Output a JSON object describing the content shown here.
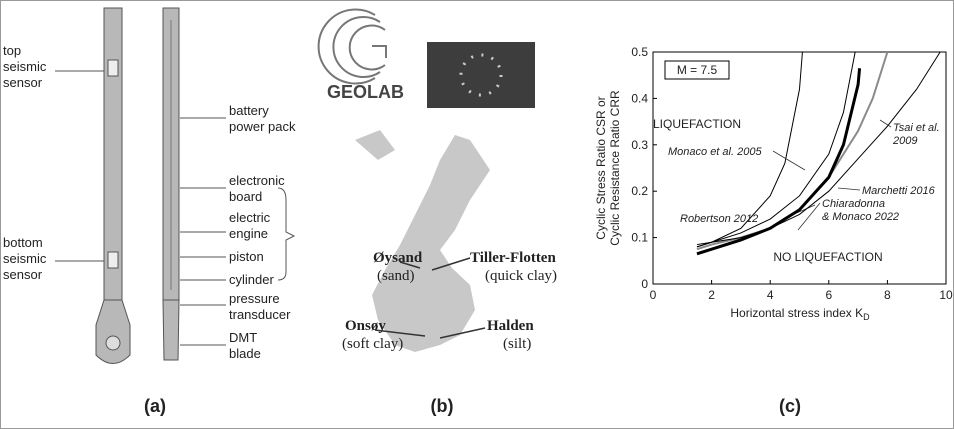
{
  "panel_a": {
    "caption": "(a)",
    "left_labels": [
      [
        "top",
        "seismic",
        "sensor"
      ],
      [
        "bottom",
        "seismic",
        "sensor"
      ]
    ],
    "right_labels": [
      [
        "battery",
        "power pack"
      ],
      [
        "electronic",
        "board"
      ],
      [
        "electric",
        "engine"
      ],
      [
        "piston"
      ],
      [
        "cylinder"
      ],
      [
        "pressure",
        "transducer"
      ],
      [
        "DMT",
        "blade"
      ]
    ]
  },
  "panel_b": {
    "caption": "(b)",
    "logo": "GEOLAB",
    "sites": [
      [
        "Øysand",
        "(sand)"
      ],
      [
        "Tiller-Flotten",
        "(quick clay)"
      ],
      [
        "Onsøy",
        "(soft clay)"
      ],
      [
        "Halden",
        "(silt)"
      ]
    ]
  },
  "panel_c": {
    "caption": "(c)"
  },
  "chart_data": {
    "type": "line",
    "xlabel": "Horizontal stress index K",
    "xlabel_subscript": "D",
    "ylabel": [
      "Cyclic Stress Ratio CSR or",
      "Cyclic Resistance Ratio CRR"
    ],
    "xlim": [
      0,
      10
    ],
    "ylim": [
      0,
      0.5
    ],
    "xticks": [
      0,
      2,
      4,
      6,
      8,
      10
    ],
    "yticks": [
      0,
      0.1,
      0.2,
      0.3,
      0.4,
      0.5
    ],
    "annotations": [
      "M = 7.5",
      "LIQUEFACTION",
      "NO LIQUEFACTION"
    ],
    "series": [
      {
        "label_lines": [
          "Monaco et al. 2005"
        ],
        "color": "#000000",
        "width": 1,
        "x": [
          1.5,
          2,
          3,
          4,
          4.5,
          5,
          5.1
        ],
        "values": [
          0.08,
          0.09,
          0.12,
          0.19,
          0.26,
          0.42,
          0.5
        ]
      },
      {
        "label_lines": [
          "Robertson 2012"
        ],
        "color": "#000000",
        "width": 1,
        "x": [
          1.5,
          2,
          3,
          4,
          5,
          6,
          6.5,
          6.9
        ],
        "values": [
          0.08,
          0.09,
          0.11,
          0.14,
          0.19,
          0.28,
          0.37,
          0.5
        ]
      },
      {
        "label_lines": [
          "Marchetti 2016"
        ],
        "color": "#8a8a8a",
        "width": 2,
        "x": [
          1.5,
          2,
          3,
          4,
          5,
          6,
          7,
          7.5,
          8
        ],
        "values": [
          0.075,
          0.085,
          0.1,
          0.12,
          0.16,
          0.23,
          0.33,
          0.4,
          0.5
        ]
      },
      {
        "label_lines": [
          "Tsai et al.",
          "2009"
        ],
        "color": "#000000",
        "width": 1,
        "x": [
          1.5,
          2,
          3,
          4,
          5,
          6,
          7,
          8,
          9,
          9.8
        ],
        "values": [
          0.085,
          0.09,
          0.1,
          0.12,
          0.15,
          0.2,
          0.27,
          0.34,
          0.42,
          0.5
        ]
      },
      {
        "label_lines": [
          "Chiaradonna",
          "& Monaco 2022"
        ],
        "color": "#000000",
        "width": 3,
        "x": [
          1.5,
          2,
          3,
          4,
          5,
          6,
          6.5,
          7,
          7.05
        ],
        "values": [
          0.065,
          0.075,
          0.095,
          0.12,
          0.16,
          0.23,
          0.3,
          0.43,
          0.465
        ]
      }
    ]
  }
}
